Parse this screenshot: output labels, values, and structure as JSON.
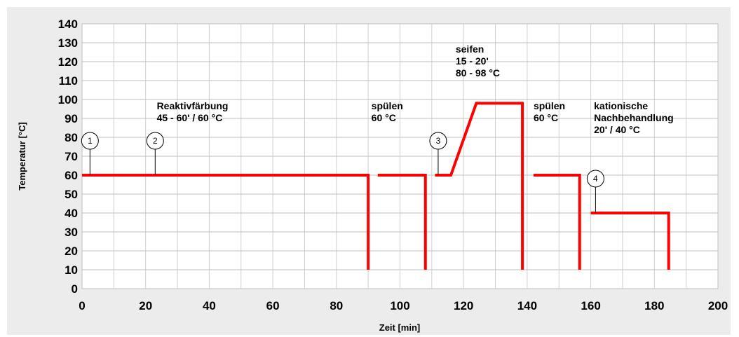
{
  "chart_data": {
    "type": "line",
    "title": "",
    "xlabel": "Zeit [min]",
    "ylabel": "Temperatur [°C]",
    "xlim": [
      0,
      200
    ],
    "ylim": [
      0,
      140
    ],
    "xticks": [
      "0",
      "20",
      "40",
      "60",
      "80",
      "100",
      "120",
      "140",
      "160",
      "180",
      "200"
    ],
    "yticks": [
      "0",
      "10",
      "20",
      "30",
      "40",
      "50",
      "60",
      "70",
      "80",
      "90",
      "100",
      "110",
      "120",
      "130",
      "140"
    ],
    "grid": true,
    "line_color": "#ff0000",
    "segments": [
      {
        "x": [
          0,
          90,
          90
        ],
        "y": [
          60,
          60,
          10
        ]
      },
      {
        "x": [
          93,
          108,
          108
        ],
        "y": [
          60,
          60,
          10
        ]
      },
      {
        "x": [
          111,
          116,
          124,
          138.5,
          138.5
        ],
        "y": [
          60,
          60,
          98,
          98,
          10
        ]
      },
      {
        "x": [
          142,
          156.5,
          156.5
        ],
        "y": [
          60,
          60,
          10
        ]
      },
      {
        "x": [
          160,
          184.5,
          184.5
        ],
        "y": [
          40,
          40,
          10
        ]
      }
    ],
    "markers": [
      {
        "label": "1",
        "x": 2.5,
        "y": 60
      },
      {
        "label": "2",
        "x": 23,
        "y": 60
      },
      {
        "label": "3",
        "x": 112,
        "y": 60
      },
      {
        "label": "4",
        "x": 161.5,
        "y": 40
      }
    ],
    "annotations": [
      {
        "lines": [
          "Reaktivfärbung",
          "45 - 60' / 60 °C"
        ],
        "x": 23.5,
        "y": 100
      },
      {
        "lines": [
          "spülen",
          "60 °C"
        ],
        "x": 91,
        "y": 100
      },
      {
        "lines": [
          "seifen",
          "15 - 20'",
          "80 - 98 °C"
        ],
        "x": 117.5,
        "y": 130
      },
      {
        "lines": [
          "spülen",
          "60 °C"
        ],
        "x": 142,
        "y": 100
      },
      {
        "lines": [
          "kationische",
          "Nachbehandlung",
          "20' / 40 °C"
        ],
        "x": 161,
        "y": 100
      }
    ]
  }
}
